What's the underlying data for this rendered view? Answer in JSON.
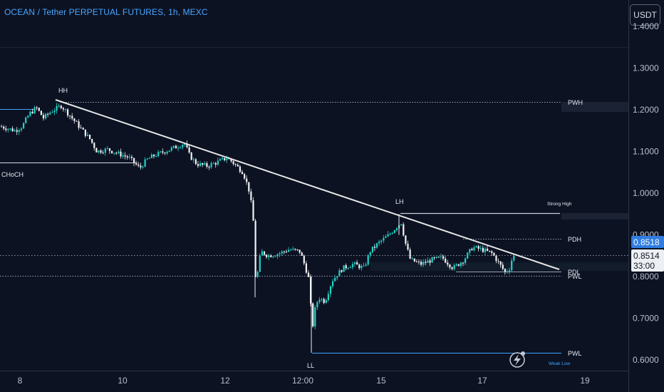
{
  "header": {
    "title": "OCEAN / Tether PERPETUAL FUTURES, 1h, MEXC",
    "currency_button": "USDT"
  },
  "price_badges": {
    "last_price": "0.8518",
    "bid_price": "0.8514",
    "countdown": "33:00"
  },
  "annotations": {
    "hh": "HH",
    "choch": "CHoCH",
    "lh": "LH",
    "ll": "LL",
    "strong_high": "Strong High",
    "weak_low": "Weak Low",
    "pwh": "PWH",
    "pdh": "PDH",
    "pdl": "PDL",
    "pwl_upper": "PWL",
    "pwl_lower": "PWL"
  },
  "colors": {
    "background": "#0c1222",
    "up_candle": "#22d3c8",
    "down_candle": "#f2f2f2",
    "accent_blue": "#3fa6ff",
    "trendline": "#e8e8e8"
  },
  "icons": {
    "alert": "lightning-alert-icon"
  },
  "chart_data": {
    "type": "candlestick",
    "title": "OCEAN / Tether PERPETUAL FUTURES, 1h, MEXC",
    "x_ticks": [
      "8",
      "10",
      "12",
      "12:00",
      "15",
      "17",
      "19"
    ],
    "y_ticks": [
      "1.4000",
      "1.3000",
      "1.2000",
      "1.1000",
      "1.0000",
      "0.9000",
      "0.8000",
      "0.7000",
      "0.6000"
    ],
    "ylim": [
      0.58,
      1.44
    ],
    "levels": {
      "PWH": 1.219,
      "Strong High": 0.948,
      "PDH": 0.88,
      "PDL": 0.815,
      "PWL": 0.808,
      "PWL_low": 0.617,
      "CHoCH": 1.073
    },
    "close_path": [
      [
        0,
        1.16
      ],
      [
        10,
        1.155
      ],
      [
        20,
        1.15
      ],
      [
        30,
        1.16
      ],
      [
        40,
        1.19
      ],
      [
        50,
        1.205
      ],
      [
        60,
        1.18
      ],
      [
        70,
        1.195
      ],
      [
        85,
        1.21
      ],
      [
        95,
        1.19
      ],
      [
        105,
        1.17
      ],
      [
        115,
        1.15
      ],
      [
        125,
        1.13
      ],
      [
        135,
        1.1
      ],
      [
        150,
        1.105
      ],
      [
        165,
        1.095
      ],
      [
        180,
        1.085
      ],
      [
        195,
        1.06
      ],
      [
        205,
        1.08
      ],
      [
        215,
        1.09
      ],
      [
        230,
        1.1
      ],
      [
        245,
        1.11
      ],
      [
        258,
        1.12
      ],
      [
        265,
        1.09
      ],
      [
        275,
        1.07
      ],
      [
        290,
        1.065
      ],
      [
        305,
        1.075
      ],
      [
        318,
        1.085
      ],
      [
        328,
        1.07
      ],
      [
        340,
        1.05
      ],
      [
        348,
        1.01
      ],
      [
        354,
        0.95
      ],
      [
        358,
        0.78
      ],
      [
        365,
        0.86
      ],
      [
        375,
        0.85
      ],
      [
        390,
        0.855
      ],
      [
        405,
        0.865
      ],
      [
        420,
        0.86
      ],
      [
        428,
        0.82
      ],
      [
        433,
        0.79
      ],
      [
        437,
        0.67
      ],
      [
        441,
        0.72
      ],
      [
        446,
        0.75
      ],
      [
        455,
        0.74
      ],
      [
        465,
        0.79
      ],
      [
        480,
        0.82
      ],
      [
        495,
        0.83
      ],
      [
        510,
        0.82
      ],
      [
        518,
        0.86
      ],
      [
        530,
        0.88
      ],
      [
        545,
        0.9
      ],
      [
        556,
        0.92
      ],
      [
        562,
        0.93
      ],
      [
        568,
        0.88
      ],
      [
        575,
        0.84
      ],
      [
        590,
        0.83
      ],
      [
        605,
        0.84
      ],
      [
        620,
        0.845
      ],
      [
        635,
        0.82
      ],
      [
        650,
        0.84
      ],
      [
        662,
        0.87
      ],
      [
        675,
        0.865
      ],
      [
        690,
        0.855
      ],
      [
        700,
        0.83
      ],
      [
        708,
        0.81
      ],
      [
        714,
        0.82
      ],
      [
        718,
        0.845
      ],
      [
        722,
        0.851
      ]
    ]
  }
}
